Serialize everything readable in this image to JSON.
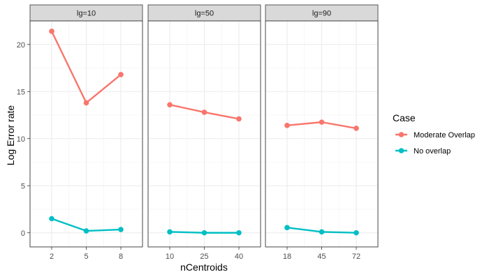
{
  "chart_data": {
    "type": "line",
    "ylabel": "Log Error rate",
    "xlabel": "nCentroids",
    "ylim": [
      -1.5,
      22.5
    ],
    "yticks": [
      0,
      5,
      10,
      15,
      20
    ],
    "grid": true,
    "legend": {
      "title": "Case",
      "placement": "right"
    },
    "series_colors": {
      "Moderate Overlap": "#F8766D",
      "No overlap": "#00BFC4"
    },
    "facets": [
      {
        "label": "lg=10",
        "categories": [
          "2",
          "5",
          "8"
        ],
        "series": [
          {
            "name": "Moderate Overlap",
            "values": [
              21.4,
              13.8,
              16.8
            ]
          },
          {
            "name": "No overlap",
            "values": [
              1.5,
              0.2,
              0.35
            ]
          }
        ]
      },
      {
        "label": "lg=50",
        "categories": [
          "10",
          "25",
          "40"
        ],
        "series": [
          {
            "name": "Moderate Overlap",
            "values": [
              13.6,
              12.8,
              12.1
            ]
          },
          {
            "name": "No overlap",
            "values": [
              0.1,
              0.0,
              0.0
            ]
          }
        ]
      },
      {
        "label": "lg=90",
        "categories": [
          "18",
          "45",
          "72"
        ],
        "series": [
          {
            "name": "Moderate Overlap",
            "values": [
              11.4,
              11.75,
              11.1
            ]
          },
          {
            "name": "No overlap",
            "values": [
              0.55,
              0.1,
              0.0
            ]
          }
        ]
      }
    ]
  }
}
